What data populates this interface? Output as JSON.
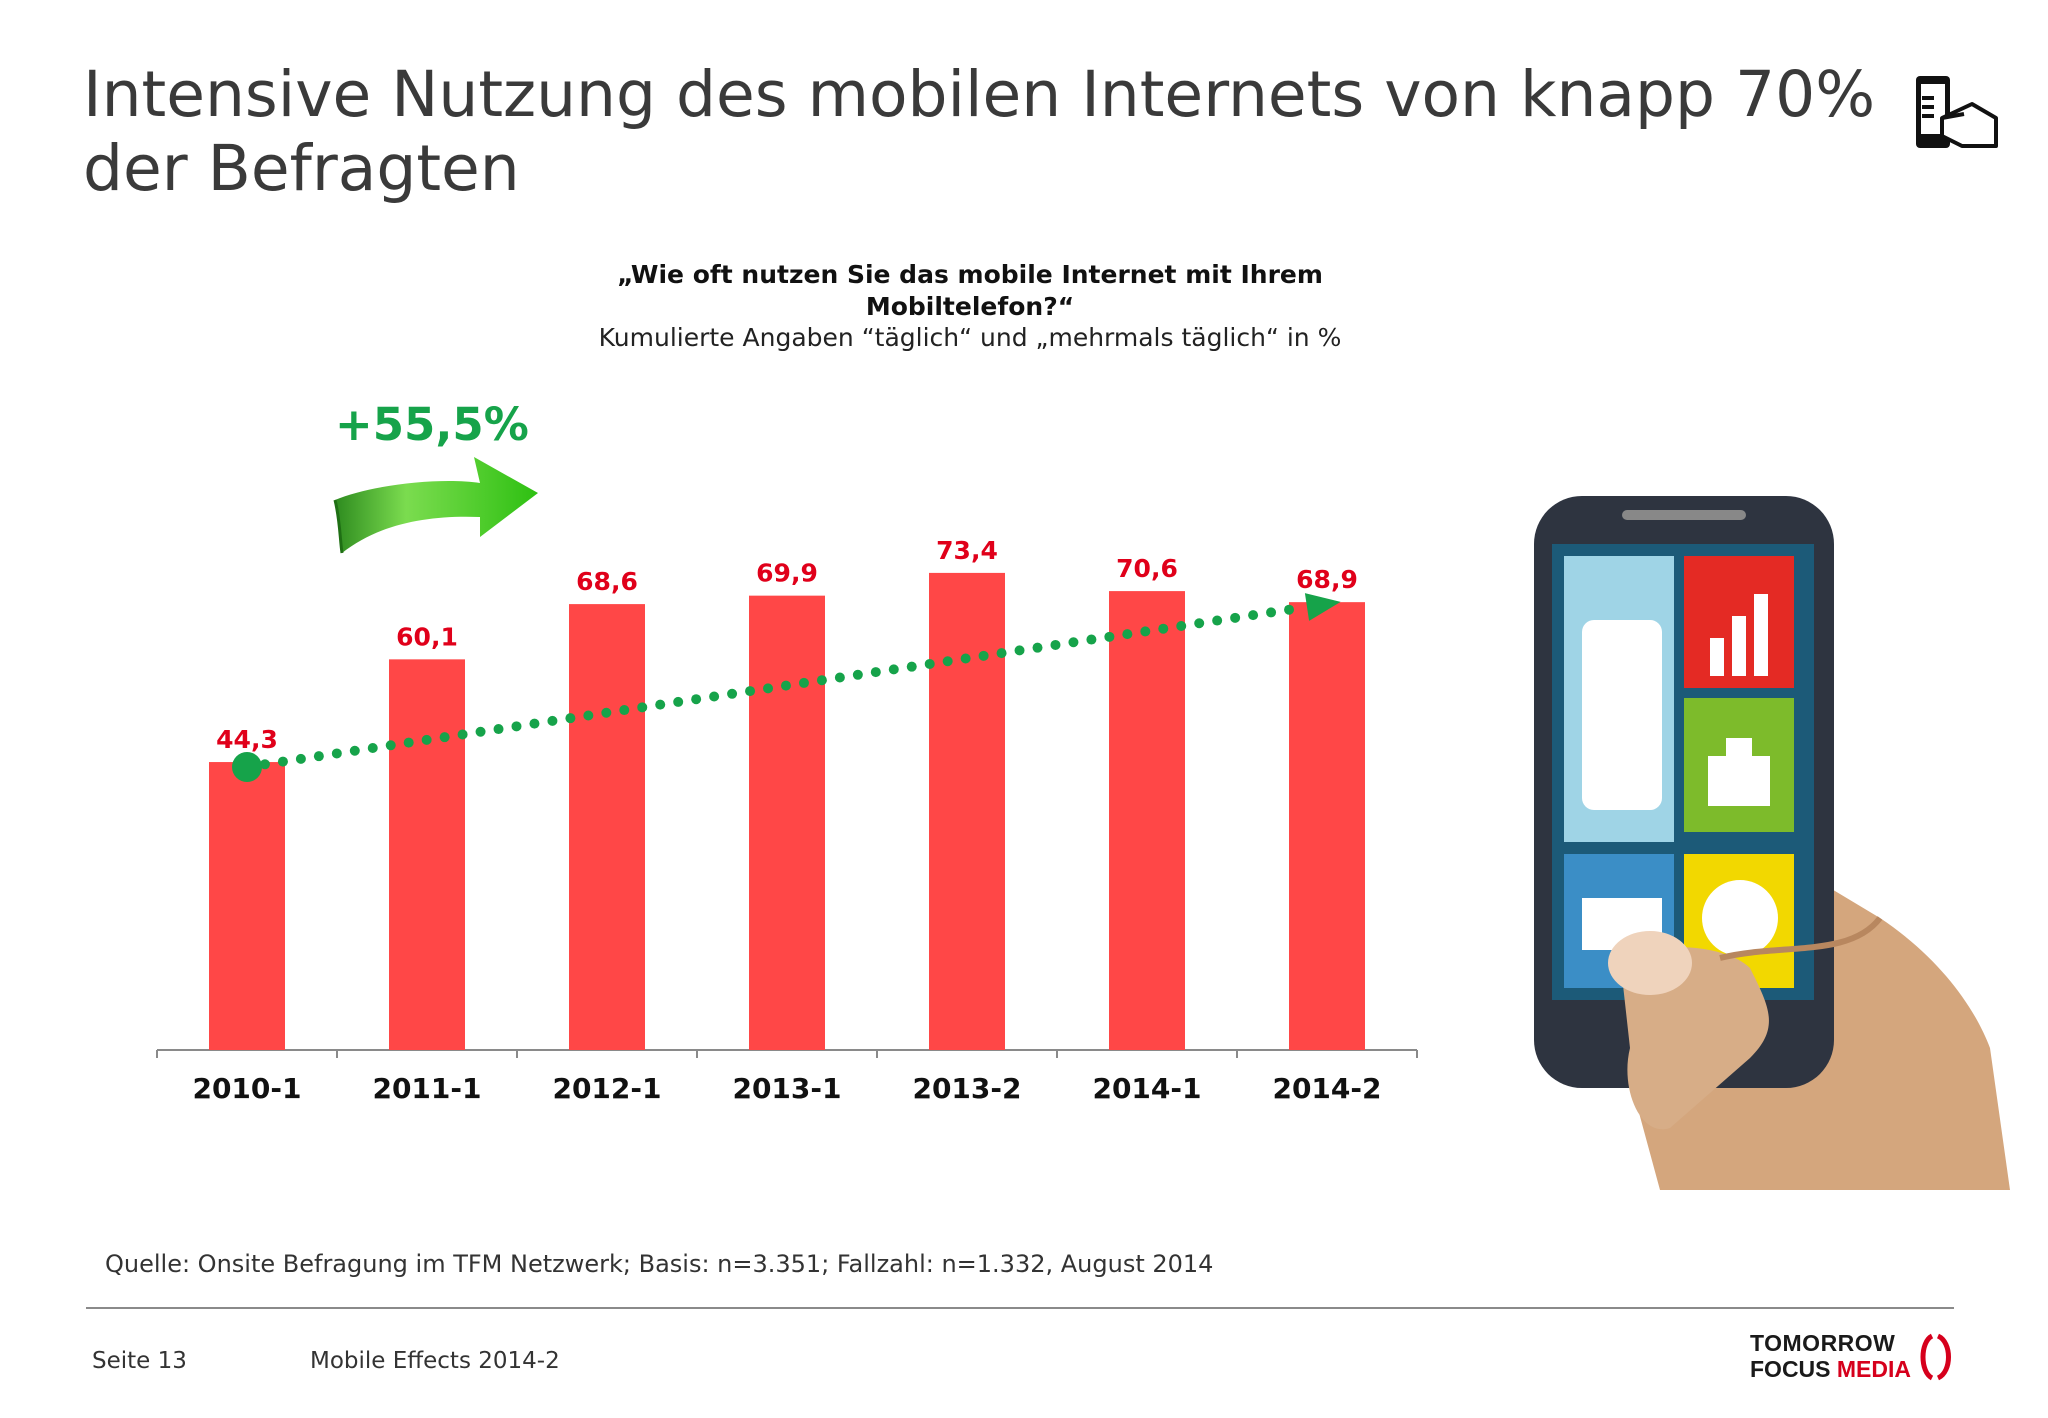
{
  "slide": {
    "title": "Intensive Nutzung des mobilen Internets von knapp 70% der Befragten",
    "question": "„Wie oft nutzen Sie das mobile Internet mit Ihrem Mobiltelefon?“",
    "subtitle": "Kumulierte Angaben “täglich“ und „mehrmals täglich“  in %",
    "growth_label": "+55,5%",
    "source": "Quelle: Onsite Befragung im TFM Netzwerk; Basis: n=3.351; Fallzahl: n=1.332, August 2014"
  },
  "footer": {
    "page": "Seite 13",
    "report": "Mobile Effects 2014-2",
    "logo_line1": "TOMORROW",
    "logo_line2a": "FOCUS ",
    "logo_line2b": "MEDIA"
  },
  "icons": [
    "smartphone-touch-icon",
    "growth-arrow-icon",
    "hand-holding-phone-illustration"
  ],
  "colors": {
    "bar": "#ff4747",
    "value_label": "#e0001a",
    "trend": "#16a34a",
    "logo_accent": "#d6001c"
  },
  "chart_data": {
    "type": "bar",
    "categories": [
      "2010-1",
      "2011-1",
      "2012-1",
      "2013-1",
      "2013-2",
      "2014-1",
      "2014-2"
    ],
    "values": [
      44.3,
      60.1,
      68.6,
      69.9,
      73.4,
      70.6,
      68.9
    ],
    "value_labels": [
      "44,3",
      "60,1",
      "68,6",
      "69,9",
      "73,4",
      "70,6",
      "68,9"
    ],
    "ylim": [
      0,
      100
    ],
    "trend": {
      "style": "dotted",
      "from": "2010-1",
      "to": "2014-2",
      "arrow": true
    },
    "grid": false,
    "legend": "none"
  }
}
